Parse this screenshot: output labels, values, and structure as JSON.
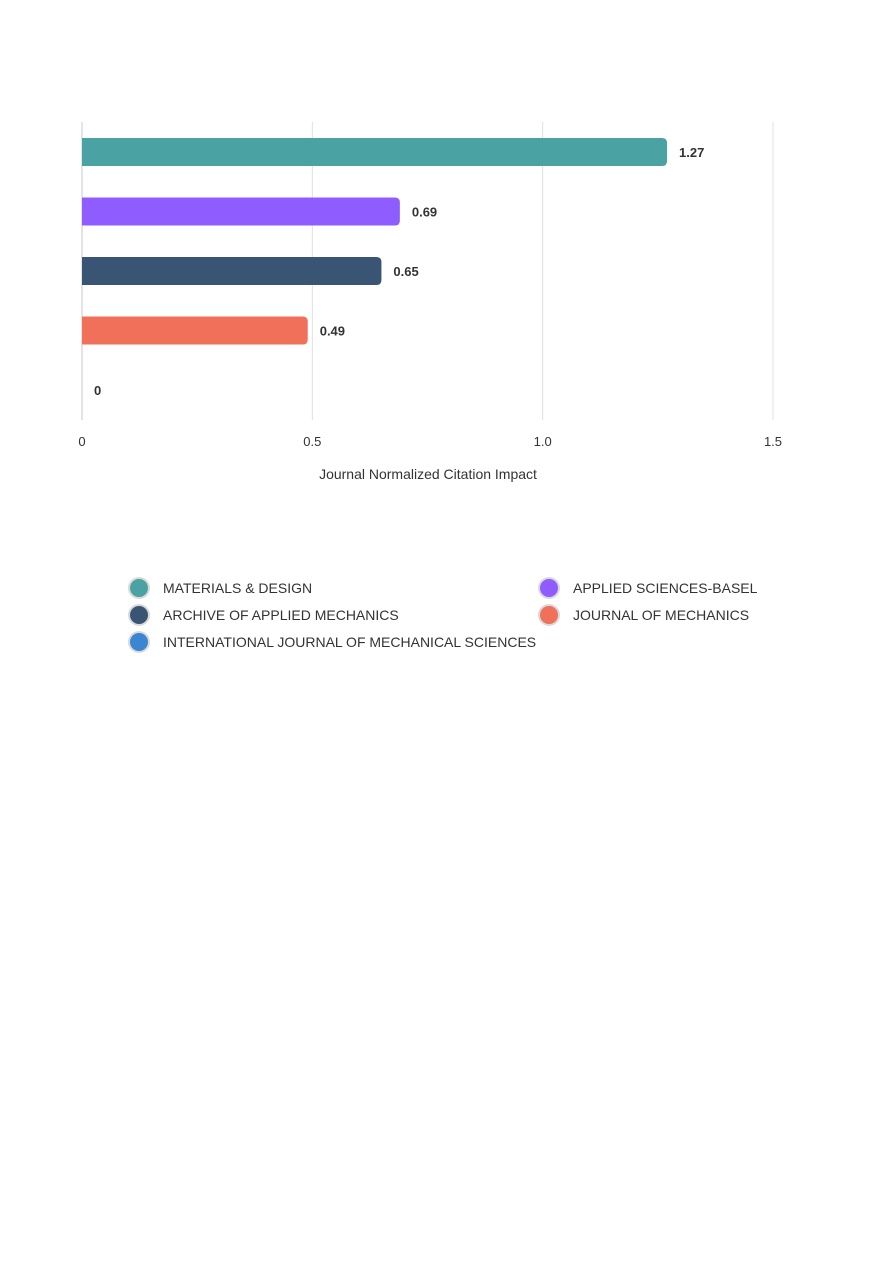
{
  "chart_data": {
    "type": "bar",
    "orientation": "horizontal",
    "categories": [
      "MATERIALS & DESIGN",
      "APPLIED SCIENCES-BASEL",
      "ARCHIVE OF APPLIED MECHANICS",
      "JOURNAL OF MECHANICS",
      "INTERNATIONAL JOURNAL OF MECHANICAL SCIENCES"
    ],
    "values": [
      1.27,
      0.69,
      0.65,
      0.49,
      0
    ],
    "value_labels": [
      "1.27",
      "0.69",
      "0.65",
      "0.49",
      "0"
    ],
    "colors": [
      "#4aa3a2",
      "#8f5cff",
      "#3a5574",
      "#f07059",
      "#3a86d1"
    ],
    "xlabel": "Journal Normalized Citation Impact",
    "xlim": [
      0,
      1.5
    ],
    "xticks": [
      0,
      0.5,
      1.0,
      1.5
    ],
    "xtick_labels": [
      "0",
      "0.5",
      "1.0",
      "1.5"
    ],
    "grid": true,
    "legend_position": "bottom"
  }
}
